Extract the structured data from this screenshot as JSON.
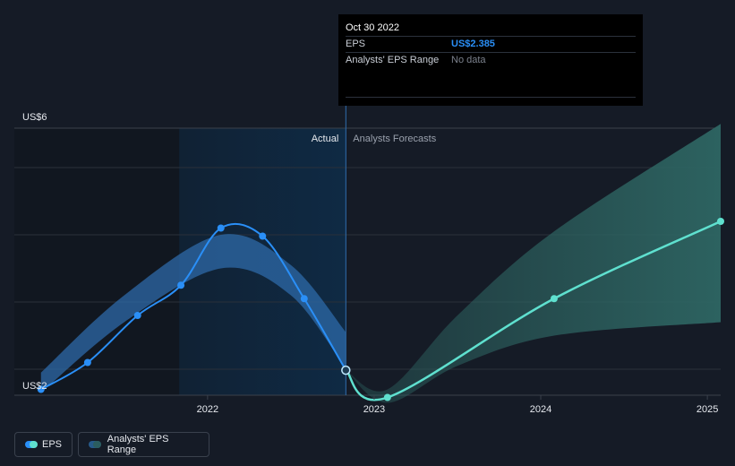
{
  "chart_data": {
    "type": "line",
    "ylim": [
      2,
      6
    ],
    "y_ticks": [
      {
        "value": 6,
        "label": "US$6"
      },
      {
        "value": 2,
        "label": "US$2"
      }
    ],
    "gridlines": [
      2.4,
      3.4,
      4.4,
      5.4
    ],
    "x_ticks": [
      {
        "value": 2022.0,
        "label": "2022"
      },
      {
        "value": 2023.0,
        "label": "2023"
      },
      {
        "value": 2024.0,
        "label": "2024"
      },
      {
        "value": 2025.0,
        "label": "2025"
      }
    ],
    "xlim": [
      2020.84,
      2025.08
    ],
    "divider_x": 2022.83,
    "highlight_start": 2021.83,
    "labels": {
      "actual": "Actual",
      "forecast": "Analysts Forecasts"
    },
    "eps_actual": [
      {
        "x": 2021.0,
        "y": 2.1
      },
      {
        "x": 2021.28,
        "y": 2.5
      },
      {
        "x": 2021.58,
        "y": 3.2
      },
      {
        "x": 2021.84,
        "y": 3.65
      },
      {
        "x": 2022.08,
        "y": 4.5
      },
      {
        "x": 2022.33,
        "y": 4.38
      },
      {
        "x": 2022.58,
        "y": 3.45
      },
      {
        "x": 2022.83,
        "y": 2.385
      }
    ],
    "eps_forecast": [
      {
        "x": 2022.83,
        "y": 2.385
      },
      {
        "x": 2023.08,
        "y": 1.98
      },
      {
        "x": 2024.08,
        "y": 3.45
      },
      {
        "x": 2025.08,
        "y": 4.6
      }
    ],
    "range_past": [
      {
        "x": 2021.0,
        "lo": 2.05,
        "hi": 2.35
      },
      {
        "x": 2021.5,
        "lo": 3.1,
        "hi": 3.5
      },
      {
        "x": 2022.08,
        "lo": 3.9,
        "hi": 4.4
      },
      {
        "x": 2022.5,
        "lo": 3.5,
        "hi": 3.95
      },
      {
        "x": 2022.83,
        "lo": 2.4,
        "hi": 2.95
      }
    ],
    "range_future": [
      {
        "x": 2022.83,
        "lo": 2.385,
        "hi": 2.385
      },
      {
        "x": 2023.08,
        "lo": 1.9,
        "hi": 2.1
      },
      {
        "x": 2023.5,
        "lo": 2.45,
        "hi": 3.2
      },
      {
        "x": 2024.08,
        "lo": 2.9,
        "hi": 4.45
      },
      {
        "x": 2025.08,
        "lo": 3.1,
        "hi": 6.05
      }
    ]
  },
  "tooltip": {
    "date": "Oct 30 2022",
    "eps_label": "EPS",
    "eps_value": "US$2.385",
    "range_label": "Analysts' EPS Range",
    "range_value": "No data"
  },
  "legend": {
    "eps_label": "EPS",
    "range_label": "Analysts' EPS Range"
  },
  "colors": {
    "actual_line": "#2a8ff7",
    "forecast_line": "#5fe0cf",
    "actual_band": "#2e6aa8",
    "forecast_band": "#2e6663",
    "highlight": "#0f2a44",
    "background": "#151b26"
  }
}
